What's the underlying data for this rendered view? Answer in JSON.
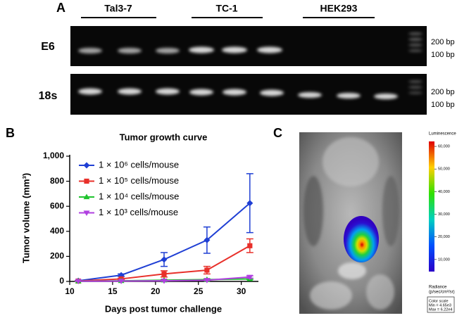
{
  "panel_a": {
    "label": "A",
    "groups": [
      "Tal3-7",
      "TC-1",
      "HEK293"
    ],
    "rows": [
      "E6",
      "18s"
    ],
    "markers": [
      [
        "200 bp",
        "100 bp"
      ],
      [
        "200 bp",
        "100 bp"
      ]
    ]
  },
  "chart_data": {
    "type": "line",
    "panel_label": "B",
    "title": "Tumor growth curve",
    "x_label": "Days post tumor challenge",
    "y_label": "Tumor volume (mm³)",
    "x": [
      11,
      16,
      21,
      26,
      31
    ],
    "series": [
      {
        "name": "1 × 10⁶ cells/mouse",
        "color": "#1f3fd4",
        "marker": "diamond",
        "values": [
          5,
          50,
          175,
          330,
          625
        ],
        "errors": [
          3,
          10,
          55,
          105,
          235
        ]
      },
      {
        "name": "1 × 10⁵ cells/mouse",
        "color": "#e8302a",
        "marker": "square",
        "values": [
          3,
          20,
          60,
          90,
          285
        ],
        "errors": [
          2,
          5,
          25,
          30,
          55
        ]
      },
      {
        "name": "1 × 10⁴ cells/mouse",
        "color": "#1fc42e",
        "marker": "triangle",
        "values": [
          2,
          5,
          10,
          15,
          20
        ],
        "errors": [
          1,
          2,
          3,
          5,
          5
        ]
      },
      {
        "name": "1 × 10³ cells/mouse",
        "color": "#b040e0",
        "marker": "triangle-down",
        "values": [
          2,
          3,
          5,
          10,
          35
        ],
        "errors": [
          1,
          1,
          2,
          3,
          10
        ]
      }
    ],
    "xlim": [
      10,
      32
    ],
    "ylim": [
      0,
      1000
    ],
    "xticks": [
      10,
      15,
      20,
      25,
      30
    ],
    "yticks": [
      0,
      200,
      400,
      600,
      800,
      {
        "value": 1000,
        "label": "1,000"
      }
    ]
  },
  "panel_c": {
    "label": "C",
    "colorbar_title": "Luminescence",
    "colorbar_lim": [
      4650,
      62200
    ],
    "colorbar_ticks": [
      {
        "value": 60000,
        "label": "60,000"
      },
      {
        "value": 50000,
        "label": "50,000"
      },
      {
        "value": 40000,
        "label": "40,000"
      },
      {
        "value": 30000,
        "label": "30,000"
      },
      {
        "value": 20000,
        "label": "20,000"
      },
      {
        "value": 10000,
        "label": "10,000"
      }
    ],
    "unit_title": "Radiance",
    "unit": "(p/sec/cm²/sr)",
    "scale_box": [
      "Color scale",
      "Min = 4.65e3",
      "Max = 6.22e4"
    ]
  }
}
